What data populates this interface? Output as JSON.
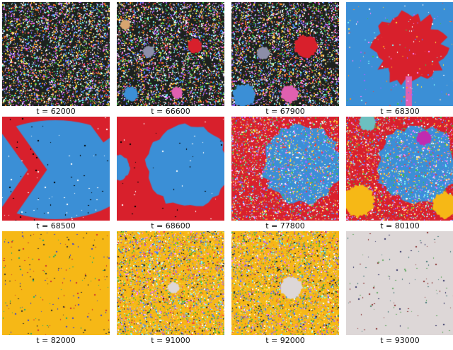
{
  "colors": {
    "dark": "#1c211e",
    "red": "#d8202c",
    "blue": "#3b8fd6",
    "yellow": "#f6b816",
    "grey": "#ddd7d7",
    "pink": "#e060b0",
    "gray_blob": "#8c8ea8",
    "tan": "#d7a570",
    "magenta": "#c02bb0"
  },
  "panels": [
    {
      "label": "t = 62000"
    },
    {
      "label": "t = 66600"
    },
    {
      "label": "t = 67900"
    },
    {
      "label": "t = 68300"
    },
    {
      "label": "t = 68500"
    },
    {
      "label": "t = 68600"
    },
    {
      "label": "t = 77800"
    },
    {
      "label": "t = 80100"
    },
    {
      "label": "t = 82000"
    },
    {
      "label": "t = 91000"
    },
    {
      "label": "t = 92000"
    },
    {
      "label": "t = 93000"
    }
  ]
}
